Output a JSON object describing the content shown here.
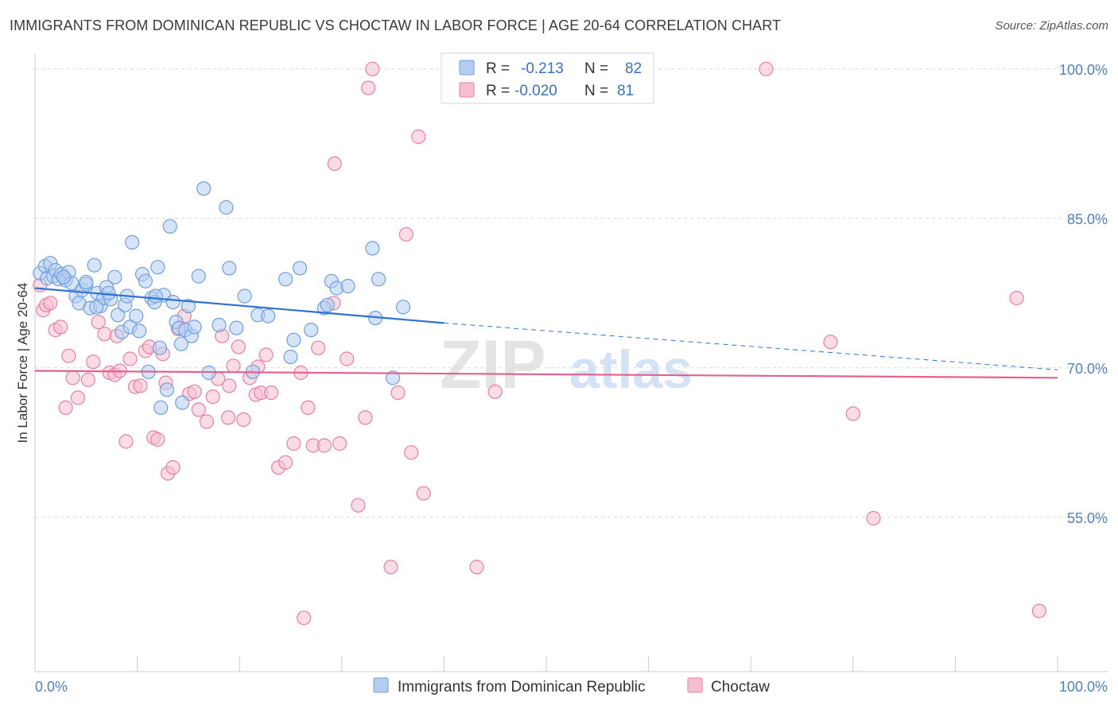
{
  "title": "IMMIGRANTS FROM DOMINICAN REPUBLIC VS CHOCTAW IN LABOR FORCE | AGE 20-64 CORRELATION CHART",
  "source": "Source: ZipAtlas.com",
  "watermark": {
    "zip": "ZIP",
    "atlas": "atlas"
  },
  "colors": {
    "blue": "#6f9ee0",
    "blue_fill": "#b5cdf0",
    "blue_line": "#2f72d6",
    "pink": "#e97fa0",
    "pink_fill": "#f6bfd0",
    "pink_line": "#e6608c",
    "tick": "#4f7fc7"
  },
  "legend": {
    "rows": [
      {
        "r_label": "R =",
        "r_value": "-0.213",
        "n_label": "N =",
        "n_value": "82",
        "series": "blue"
      },
      {
        "r_label": "R =",
        "r_value": "-0.020",
        "n_label": "N =",
        "n_value": "81",
        "series": "pink"
      }
    ]
  },
  "bottom_legend": [
    "Immigrants from Dominican Republic",
    "Choctaw"
  ],
  "chart_data": {
    "type": "scatter",
    "title": "IMMIGRANTS FROM DOMINICAN REPUBLIC VS CHOCTAW IN LABOR FORCE | AGE 20-64 CORRELATION CHART",
    "xlabel": "",
    "ylabel": "In Labor Force | Age 20-64",
    "xlim": [
      0,
      100
    ],
    "ylim": [
      39.5,
      101.5
    ],
    "x_tick_labels": [
      "0.0%",
      "100.0%"
    ],
    "y_ticks": [
      55,
      70,
      85,
      100
    ],
    "y_tick_labels": [
      "55.0%",
      "70.0%",
      "85.0%",
      "100.0%"
    ],
    "grid": true,
    "series": [
      {
        "name": "Immigrants from Dominican Republic",
        "color": "blue",
        "trend": {
          "x0": 0,
          "y0": 78.0,
          "x1": 40,
          "y1": 74.5,
          "dashed_to_x": 100,
          "dashed_to_y": 69.8
        },
        "points": [
          [
            0.5,
            79.5
          ],
          [
            1.0,
            80.2
          ],
          [
            1.2,
            79.0
          ],
          [
            1.5,
            80.5
          ],
          [
            1.8,
            79.2
          ],
          [
            2.0,
            79.8
          ],
          [
            2.3,
            78.9
          ],
          [
            2.6,
            79.4
          ],
          [
            3.0,
            78.8
          ],
          [
            3.3,
            79.6
          ],
          [
            3.6,
            78.5
          ],
          [
            4.0,
            77.2
          ],
          [
            4.3,
            76.5
          ],
          [
            4.6,
            77.8
          ],
          [
            5.0,
            78.4
          ],
          [
            5.4,
            76.0
          ],
          [
            5.8,
            80.3
          ],
          [
            6.1,
            77.5
          ],
          [
            6.4,
            76.2
          ],
          [
            6.7,
            77.0
          ],
          [
            7.0,
            78.1
          ],
          [
            7.4,
            76.9
          ],
          [
            7.8,
            79.1
          ],
          [
            8.1,
            75.3
          ],
          [
            8.5,
            73.6
          ],
          [
            8.8,
            76.3
          ],
          [
            9.0,
            77.2
          ],
          [
            9.3,
            74.1
          ],
          [
            9.5,
            82.6
          ],
          [
            9.9,
            75.2
          ],
          [
            10.2,
            73.7
          ],
          [
            10.5,
            79.4
          ],
          [
            10.8,
            78.7
          ],
          [
            11.1,
            69.6
          ],
          [
            11.4,
            77.0
          ],
          [
            11.7,
            76.6
          ],
          [
            12.0,
            80.1
          ],
          [
            12.3,
            66.0
          ],
          [
            12.6,
            77.3
          ],
          [
            12.9,
            67.8
          ],
          [
            13.2,
            84.2
          ],
          [
            13.5,
            76.6
          ],
          [
            13.8,
            74.6
          ],
          [
            14.1,
            74.0
          ],
          [
            14.4,
            66.5
          ],
          [
            14.7,
            73.8
          ],
          [
            15.0,
            76.2
          ],
          [
            15.3,
            73.2
          ],
          [
            15.6,
            74.1
          ],
          [
            16.0,
            79.2
          ],
          [
            16.5,
            88.0
          ],
          [
            17.0,
            69.5
          ],
          [
            18.0,
            74.3
          ],
          [
            18.7,
            86.1
          ],
          [
            19.0,
            80.0
          ],
          [
            19.7,
            74.0
          ],
          [
            20.5,
            77.2
          ],
          [
            21.3,
            69.6
          ],
          [
            21.8,
            75.3
          ],
          [
            22.8,
            75.2
          ],
          [
            24.5,
            78.9
          ],
          [
            25.0,
            71.1
          ],
          [
            25.3,
            72.8
          ],
          [
            25.9,
            80.0
          ],
          [
            27.0,
            73.8
          ],
          [
            28.3,
            76.0
          ],
          [
            28.6,
            76.3
          ],
          [
            29.0,
            78.7
          ],
          [
            29.5,
            78.0
          ],
          [
            30.6,
            78.2
          ],
          [
            33.0,
            82.0
          ],
          [
            33.3,
            75.0
          ],
          [
            33.6,
            78.9
          ],
          [
            35.0,
            69.0
          ],
          [
            36.0,
            76.1
          ],
          [
            12.2,
            72.0
          ],
          [
            6.0,
            76.1
          ],
          [
            5.0,
            78.6
          ],
          [
            7.2,
            77.5
          ],
          [
            2.8,
            79.1
          ],
          [
            11.8,
            77.2
          ],
          [
            14.3,
            72.4
          ]
        ]
      },
      {
        "name": "Choctaw",
        "color": "pink",
        "trend": {
          "x0": 0,
          "y0": 69.7,
          "x1": 100,
          "y1": 69.0
        },
        "points": [
          [
            0.5,
            78.3
          ],
          [
            0.8,
            75.8
          ],
          [
            1.1,
            76.3
          ],
          [
            1.5,
            76.5
          ],
          [
            2.0,
            73.8
          ],
          [
            2.5,
            74.1
          ],
          [
            3.0,
            66.0
          ],
          [
            3.3,
            71.2
          ],
          [
            3.7,
            69.0
          ],
          [
            4.2,
            67.0
          ],
          [
            5.2,
            68.8
          ],
          [
            5.7,
            70.6
          ],
          [
            6.2,
            74.6
          ],
          [
            6.8,
            73.4
          ],
          [
            7.3,
            69.5
          ],
          [
            7.8,
            69.3
          ],
          [
            8.3,
            69.7
          ],
          [
            8.9,
            62.6
          ],
          [
            9.3,
            70.9
          ],
          [
            9.8,
            68.1
          ],
          [
            10.3,
            68.2
          ],
          [
            10.8,
            71.7
          ],
          [
            11.2,
            72.1
          ],
          [
            11.6,
            63.0
          ],
          [
            12.0,
            62.8
          ],
          [
            12.5,
            71.4
          ],
          [
            13.0,
            59.4
          ],
          [
            13.5,
            60.0
          ],
          [
            14.0,
            73.9
          ],
          [
            14.6,
            75.2
          ],
          [
            15.1,
            67.4
          ],
          [
            15.6,
            67.6
          ],
          [
            16.0,
            65.8
          ],
          [
            16.8,
            64.6
          ],
          [
            17.4,
            67.1
          ],
          [
            17.9,
            68.9
          ],
          [
            18.3,
            73.2
          ],
          [
            18.9,
            65.0
          ],
          [
            19.4,
            70.2
          ],
          [
            19.9,
            72.1
          ],
          [
            20.4,
            64.8
          ],
          [
            21.0,
            69.0
          ],
          [
            21.6,
            67.3
          ],
          [
            22.1,
            67.5
          ],
          [
            22.6,
            71.3
          ],
          [
            23.1,
            67.5
          ],
          [
            23.8,
            60.0
          ],
          [
            24.5,
            60.5
          ],
          [
            25.3,
            62.4
          ],
          [
            26.0,
            69.5
          ],
          [
            26.7,
            66.0
          ],
          [
            27.2,
            62.2
          ],
          [
            27.7,
            72.0
          ],
          [
            28.3,
            62.2
          ],
          [
            29.2,
            76.5
          ],
          [
            29.8,
            62.4
          ],
          [
            30.5,
            70.9
          ],
          [
            31.6,
            56.2
          ],
          [
            32.3,
            65.0
          ],
          [
            32.6,
            98.1
          ],
          [
            33.0,
            100.0
          ],
          [
            34.8,
            50.0
          ],
          [
            35.5,
            67.5
          ],
          [
            36.3,
            83.4
          ],
          [
            36.8,
            61.5
          ],
          [
            37.5,
            93.2
          ],
          [
            38.0,
            57.4
          ],
          [
            43.2,
            50.0
          ],
          [
            45.0,
            67.6
          ],
          [
            71.5,
            100.0
          ],
          [
            77.8,
            72.6
          ],
          [
            80.0,
            65.4
          ],
          [
            82.0,
            54.9
          ],
          [
            96.0,
            77.0
          ],
          [
            98.2,
            45.6
          ],
          [
            19.0,
            68.2
          ],
          [
            29.3,
            90.5
          ],
          [
            26.3,
            44.9
          ],
          [
            12.8,
            68.5
          ],
          [
            21.8,
            70.1
          ],
          [
            8.0,
            73.2
          ]
        ]
      }
    ]
  }
}
